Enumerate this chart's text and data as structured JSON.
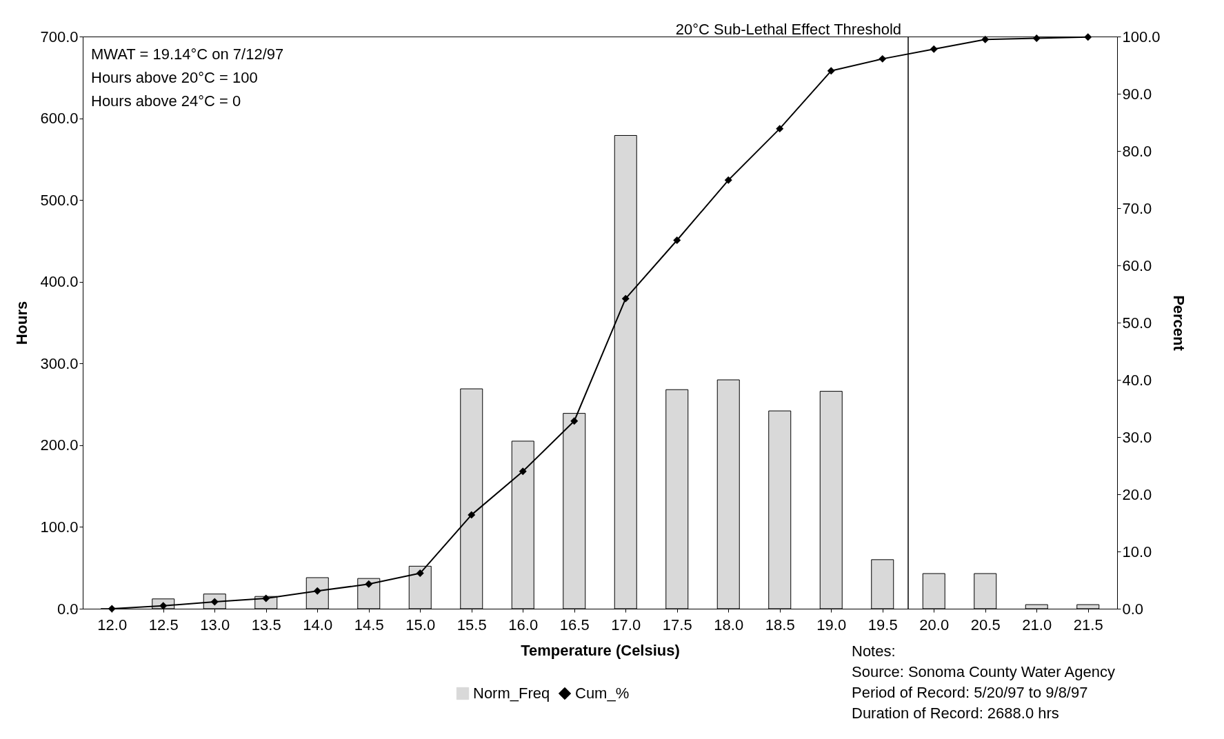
{
  "chart_data": {
    "type": "bar",
    "xlabel": "Temperature (Celsius)",
    "ylabel": "Hours",
    "y2label": "Percent",
    "x": [
      12.0,
      12.5,
      13.0,
      13.5,
      14.0,
      14.5,
      15.0,
      15.5,
      16.0,
      16.5,
      17.0,
      17.5,
      18.0,
      18.5,
      19.0,
      19.5,
      20.0,
      20.5,
      21.0,
      21.5
    ],
    "series": [
      {
        "name": "Norm_Freq",
        "color": "#d9d9d9",
        "values": [
          0,
          12,
          18,
          15,
          38,
          37,
          52,
          269,
          205,
          239,
          579,
          268,
          280,
          242,
          266,
          60,
          43,
          43,
          5,
          5
        ]
      },
      {
        "name": "Cum_%",
        "type": "line",
        "axis": "y2",
        "color": "#000000",
        "marker": "diamond",
        "values": [
          0,
          0.5,
          1.2,
          1.8,
          3.1,
          4.3,
          6.2,
          16.4,
          24.0,
          32.8,
          54.2,
          64.4,
          74.9,
          83.9,
          94.0,
          96.1,
          97.8,
          99.5,
          99.7,
          99.9
        ]
      }
    ],
    "xlim": [
      11.75,
      21.75
    ],
    "xticks": [
      {
        "value": 12,
        "label": "12.0"
      },
      {
        "value": 12.5,
        "label": "12.5"
      },
      {
        "value": 13,
        "label": "13.0"
      },
      {
        "value": 13.5,
        "label": "13.5"
      },
      {
        "value": 14,
        "label": "14.0"
      },
      {
        "value": 14.5,
        "label": "14.5"
      },
      {
        "value": 15,
        "label": "15.0"
      },
      {
        "value": 15.5,
        "label": "15.5"
      },
      {
        "value": 16,
        "label": "16.0"
      },
      {
        "value": 16.5,
        "label": "16.5"
      },
      {
        "value": 17,
        "label": "17.0"
      },
      {
        "value": 17.5,
        "label": "17.5"
      },
      {
        "value": 18,
        "label": "18.0"
      },
      {
        "value": 18.5,
        "label": "18.5"
      },
      {
        "value": 19,
        "label": "19.0"
      },
      {
        "value": 19.5,
        "label": "19.5"
      },
      {
        "value": 20,
        "label": "20.0"
      },
      {
        "value": 20.5,
        "label": "20.5"
      },
      {
        "value": 21,
        "label": "21.0"
      },
      {
        "value": 21.5,
        "label": "21.5"
      }
    ],
    "ylim": [
      0,
      700
    ],
    "yticks": [
      {
        "value": 0,
        "label": "0.0"
      },
      {
        "value": 100,
        "label": "100.0"
      },
      {
        "value": 200,
        "label": "200.0"
      },
      {
        "value": 300,
        "label": "300.0"
      },
      {
        "value": 400,
        "label": "400.0"
      },
      {
        "value": 500,
        "label": "500.0"
      },
      {
        "value": 600,
        "label": "600.0"
      },
      {
        "value": 700,
        "label": "700.0"
      }
    ],
    "y2lim": [
      0,
      100
    ],
    "y2ticks": [
      {
        "value": 0,
        "label": "0.0"
      },
      {
        "value": 10,
        "label": "10.0"
      },
      {
        "value": 20,
        "label": "20.0"
      },
      {
        "value": 30,
        "label": "30.0"
      },
      {
        "value": 40,
        "label": "40.0"
      },
      {
        "value": 50,
        "label": "50.0"
      },
      {
        "value": 60,
        "label": "60.0"
      },
      {
        "value": 70,
        "label": "70.0"
      },
      {
        "value": 80,
        "label": "80.0"
      },
      {
        "value": 90,
        "label": "90.0"
      },
      {
        "value": 100,
        "label": "100.0"
      }
    ],
    "ref_lines": [
      {
        "axis": "x",
        "value": 19.75,
        "label": "20°C Sub-Lethal Effect Threshold",
        "color": "#000000"
      }
    ],
    "annotations": [
      "MWAT = 19.14°C on 7/12/97",
      "Hours above 20°C = 100",
      "Hours above 24°C = 0",
      "Notes:",
      "Source: Sonoma County Water Agency",
      "Period of Record: 5/20/97 to 9/8/97",
      "Duration of Record: 2688.0 hrs"
    ],
    "legend": "bottom",
    "grid": false
  }
}
